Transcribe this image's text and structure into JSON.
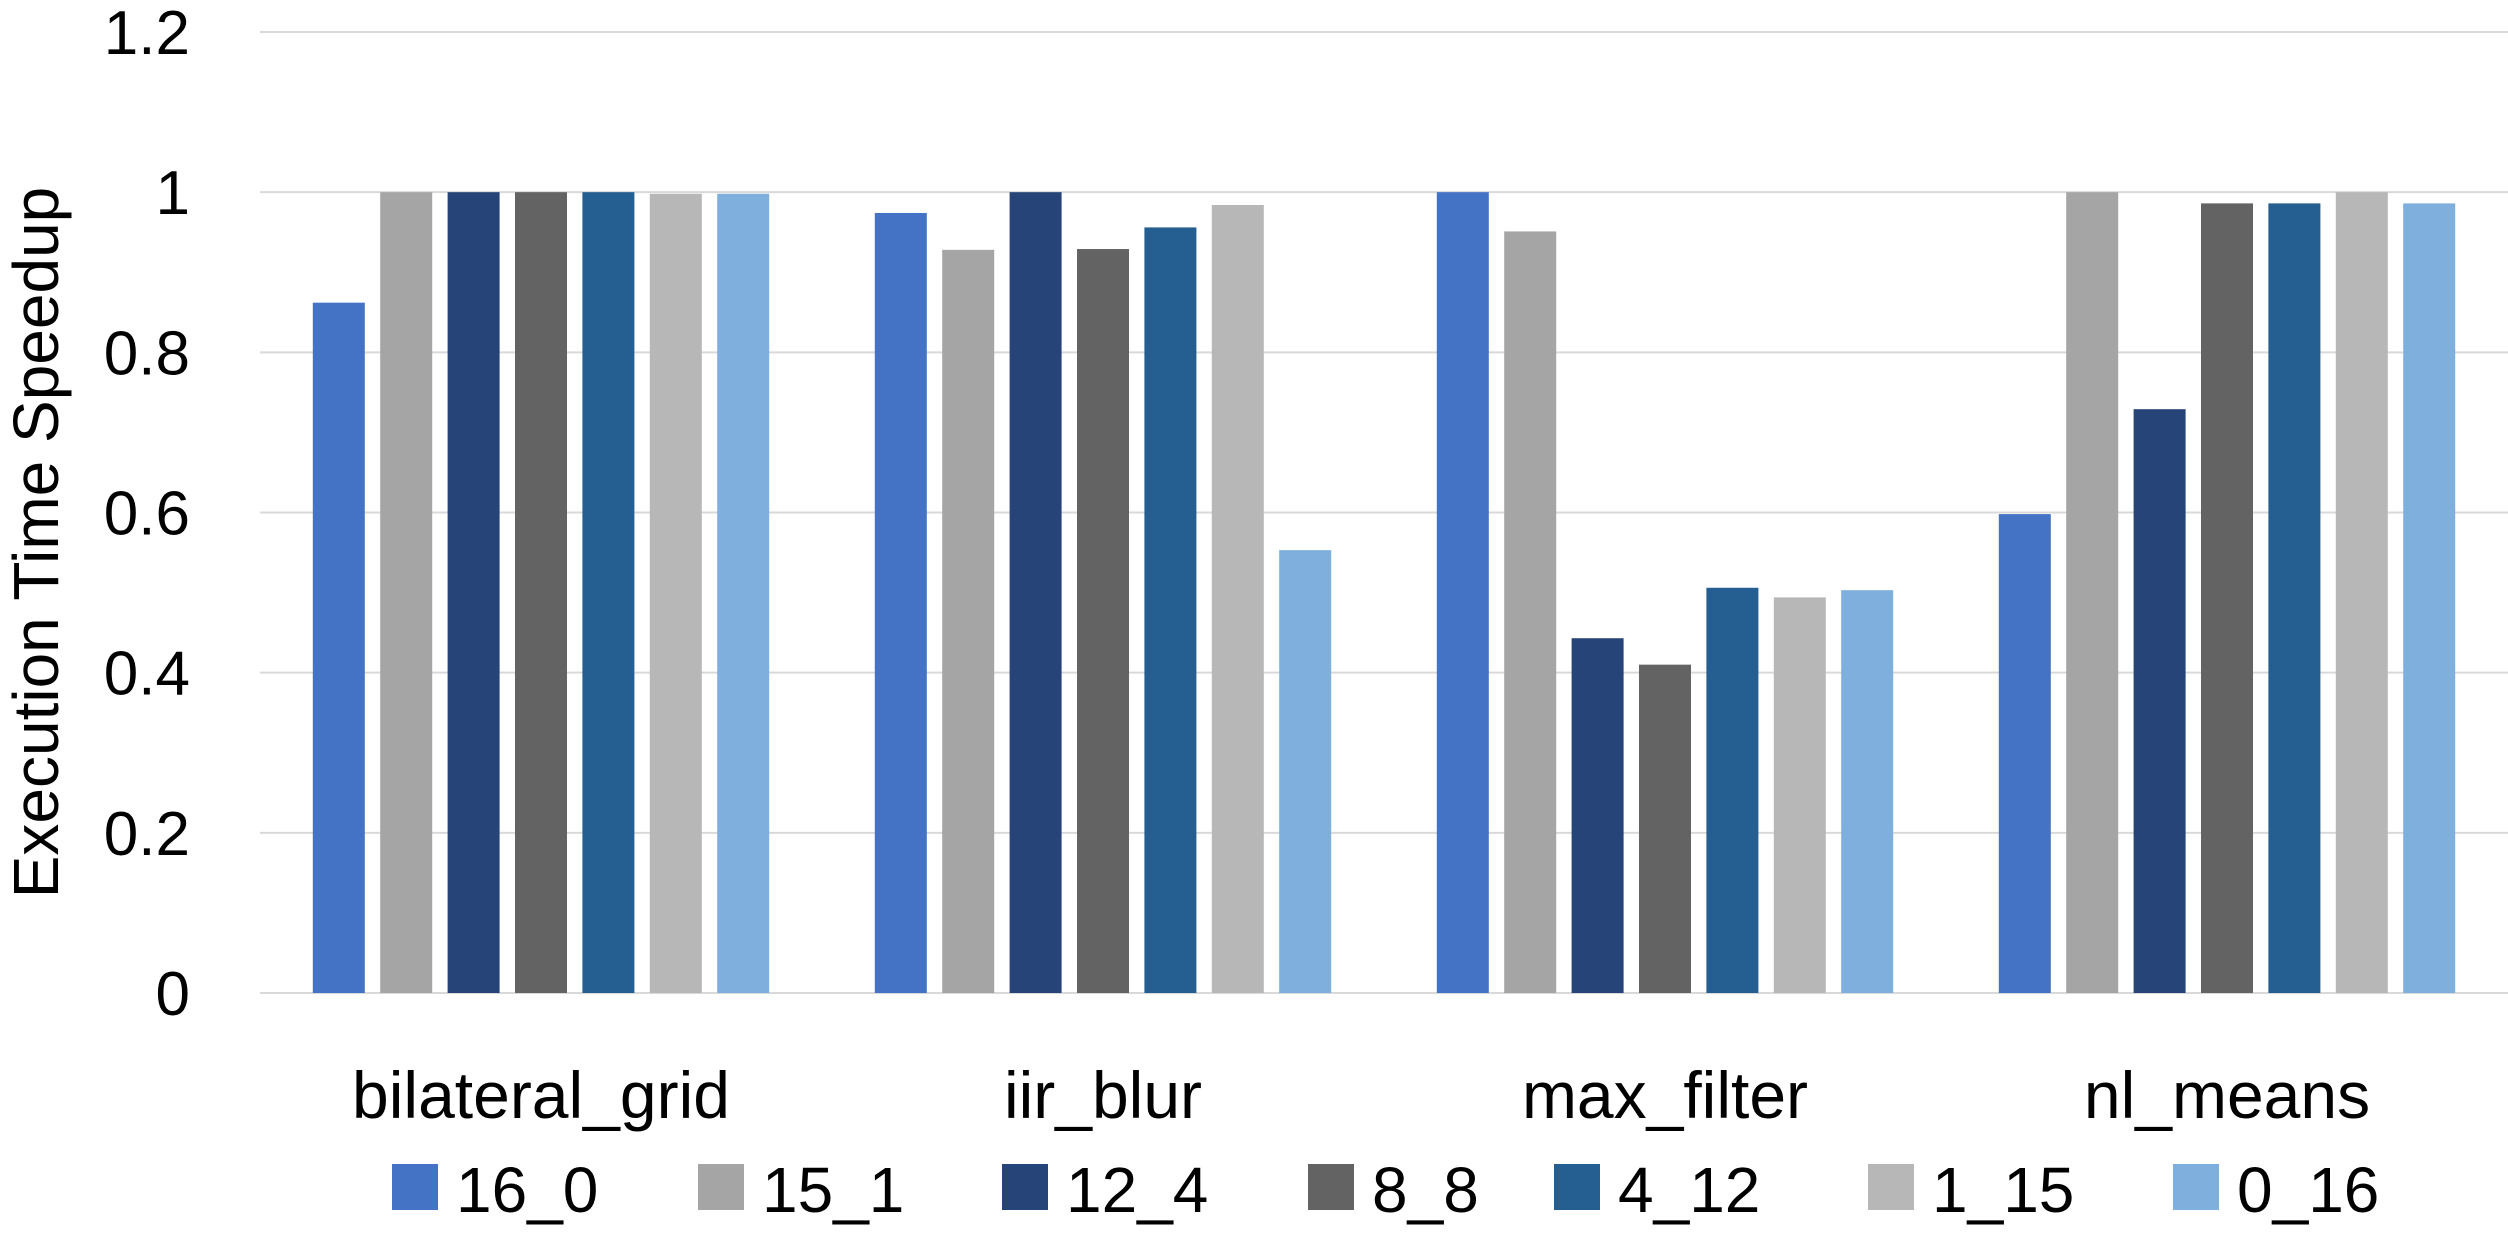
{
  "chart_data": {
    "type": "bar",
    "title": "",
    "xlabel": "",
    "ylabel": "Execution Time Speedup",
    "ylim": [
      0,
      1.2
    ],
    "yticks": [
      "0",
      "0.2",
      "0.4",
      "0.6",
      "0.8",
      "1",
      "1.2"
    ],
    "grid": true,
    "legend": "bottom",
    "categories": [
      "bilateral_grid",
      "iir_blur",
      "max_filter",
      "nl_means"
    ],
    "series": [
      {
        "name": "16_0",
        "color": "#4472C4",
        "values": [
          0.862,
          0.974,
          1.0,
          0.598
        ]
      },
      {
        "name": "15_1",
        "color": "#A5A5A5",
        "values": [
          1.0,
          0.928,
          0.951,
          1.0
        ]
      },
      {
        "name": "12_4",
        "color": "#264478",
        "values": [
          1.0,
          1.0,
          0.443,
          0.729
        ]
      },
      {
        "name": "8_8",
        "color": "#636363",
        "values": [
          1.0,
          0.929,
          0.41,
          0.986
        ]
      },
      {
        "name": "4_12",
        "color": "#255E91",
        "values": [
          1.0,
          0.956,
          0.506,
          0.986
        ]
      },
      {
        "name": "1_15",
        "color": "#B7B7B7",
        "values": [
          0.998,
          0.984,
          0.494,
          1.0
        ]
      },
      {
        "name": "0_16",
        "color": "#7FAFDD",
        "values": [
          0.998,
          0.553,
          0.503,
          0.986
        ]
      }
    ]
  }
}
